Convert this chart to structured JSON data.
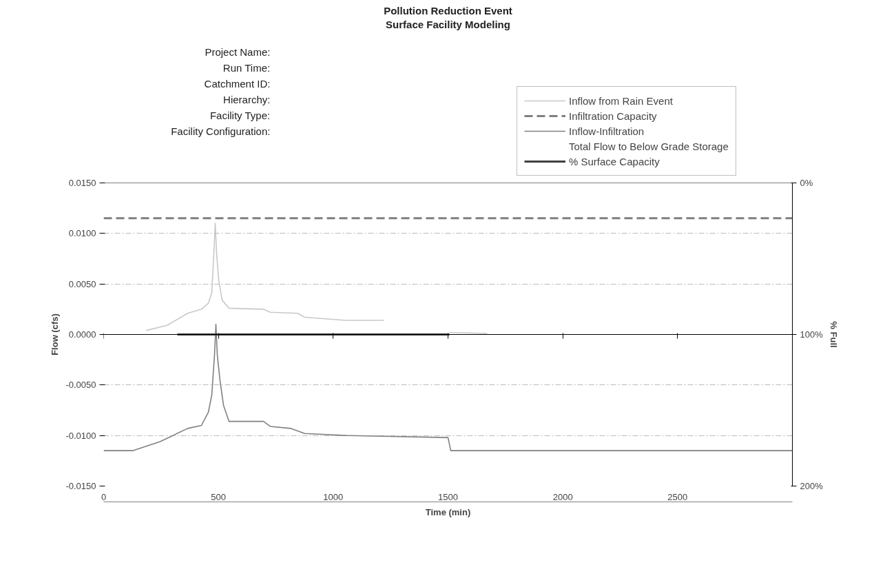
{
  "chart_data": {
    "type": "line",
    "title": "Pollution Reduction Event",
    "subtitle": "Surface Facility Modeling",
    "xlabel": "Time (min)",
    "ylabel": "Flow (cfs)",
    "y2label": "% Full",
    "annotations": [
      "Project Name:",
      "Run Time:",
      "Catchment ID:",
      "Hierarchy:",
      "Facility Type:",
      "Facility Configuration:"
    ],
    "xlim": [
      0,
      3000
    ],
    "xticks": [
      0,
      500,
      1000,
      1500,
      2000,
      2500
    ],
    "ylim": [
      -0.015,
      0.015
    ],
    "yticks": [
      {
        "value": -0.015,
        "label": "-0.0150"
      },
      {
        "value": -0.01,
        "label": "-0.0100"
      },
      {
        "value": -0.005,
        "label": "-0.0050"
      },
      {
        "value": 0,
        "label": "0.0000"
      },
      {
        "value": 0.005,
        "label": "0.0050"
      },
      {
        "value": 0.01,
        "label": "0.0100"
      },
      {
        "value": 0.015,
        "label": "0.0150"
      }
    ],
    "y2lim": [
      200,
      0
    ],
    "y2ticks": [
      {
        "value": 0,
        "label": "0%"
      },
      {
        "value": 100,
        "label": "100%"
      },
      {
        "value": 200,
        "label": "200%"
      }
    ],
    "grid": "y",
    "legend": "top right",
    "series": [
      {
        "name": "Inflow from Rain Event",
        "color": "#c8c8c8",
        "x": [
          186,
          276,
          366,
          426,
          456,
          471,
          480,
          486,
          492,
          501,
          516,
          546,
          696,
          726,
          846,
          876,
          1056,
          1221,
          1300,
          1506,
          1671
        ],
        "values": [
          0.0004,
          0.0009,
          0.0021,
          0.0025,
          0.0031,
          0.0041,
          0.008,
          0.011,
          0.008,
          0.0054,
          0.0034,
          0.0026,
          0.0025,
          0.0022,
          0.0021,
          0.0017,
          0.0014,
          0.0014,
          null,
          0.0002,
          0.0001
        ]
      },
      {
        "name": "Infiltration Capacity",
        "color": "#7f7f7f",
        "line_style": "dashed",
        "x": [
          0,
          3000
        ],
        "values": [
          0.0115,
          0.0115
        ]
      },
      {
        "name": "Inflow-Infiltration",
        "color": "#808080",
        "x": [
          0,
          126,
          246,
          366,
          426,
          456,
          471,
          483,
          489,
          495,
          507,
          522,
          546,
          696,
          726,
          816,
          876,
          1056,
          1500,
          1512,
          3000
        ],
        "values": [
          -0.0115,
          -0.0115,
          -0.0106,
          -0.0093,
          -0.009,
          -0.0077,
          -0.006,
          -0.002,
          0.001,
          -0.002,
          -0.0046,
          -0.007,
          -0.0086,
          -0.0086,
          -0.0091,
          -0.0093,
          -0.0098,
          -0.01,
          -0.0102,
          -0.0115,
          -0.0115
        ]
      },
      {
        "name": "Total Flow to Below Grade Storage"
      },
      {
        "name": "% Surface Capacity",
        "color": "#404040",
        "axis": "y2",
        "x": [
          321,
          1506
        ],
        "values": [
          100,
          100
        ]
      }
    ]
  }
}
